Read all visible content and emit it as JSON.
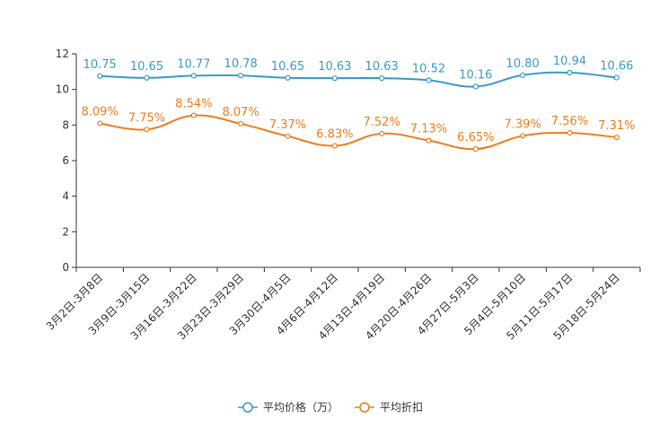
{
  "chart_data": {
    "type": "line",
    "categories": [
      "3月2日-3月8日",
      "3月9日-3月15日",
      "3月16日-3月22日",
      "3月23日-3月29日",
      "3月30日-4月5日",
      "4月6日-4月12日",
      "4月13日-4月19日",
      "4月20日-4月26日",
      "4月27日-5月3日",
      "5月4日-5月10日",
      "5月11日-5月17日",
      "5月18日-5月24日"
    ],
    "y_ticks": [
      "0",
      "2",
      "4",
      "6",
      "8",
      "10",
      "12"
    ],
    "ylim": [
      0,
      12
    ],
    "series": [
      {
        "name": "平均价格（万）",
        "color": "#3a9bc9",
        "values": [
          10.75,
          10.65,
          10.77,
          10.78,
          10.65,
          10.63,
          10.63,
          10.52,
          10.16,
          10.8,
          10.94,
          10.66
        ],
        "labels": [
          "10.75",
          "10.65",
          "10.77",
          "10.78",
          "10.65",
          "10.63",
          "10.63",
          "10.52",
          "10.16",
          "10.80",
          "10.94",
          "10.66"
        ]
      },
      {
        "name": "平均折扣",
        "color": "#f07d1a",
        "values": [
          8.09,
          7.75,
          8.54,
          8.07,
          7.37,
          6.83,
          7.52,
          7.13,
          6.65,
          7.39,
          7.56,
          7.31
        ],
        "labels": [
          "8.09%",
          "7.75%",
          "8.54%",
          "8.07%",
          "7.37%",
          "6.83%",
          "7.52%",
          "7.13%",
          "6.65%",
          "7.39%",
          "7.56%",
          "7.31%"
        ]
      }
    ],
    "legend_position": "bottom-center",
    "grid": false
  }
}
